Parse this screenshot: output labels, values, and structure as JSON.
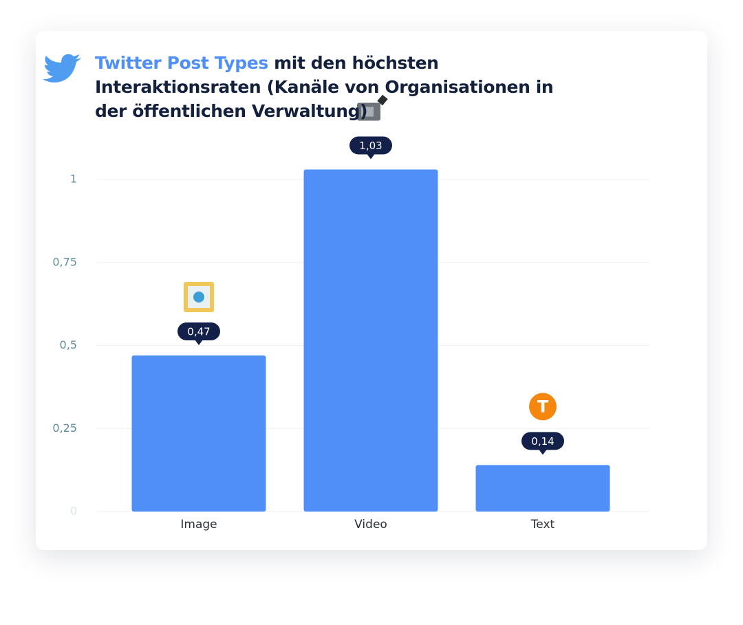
{
  "chart_data": {
    "type": "bar",
    "title_highlight": "Twitter Post Types",
    "title": "mit den höchsten Interaktionsraten (Kanäle von Organisationen in der öffentlichen Verwaltung)",
    "categories": [
      "Image",
      "Video",
      "Text"
    ],
    "values": [
      0.47,
      1.03,
      0.14
    ],
    "value_labels": [
      "0,47",
      "1,03",
      "0,14"
    ],
    "color": "#4f8ff7",
    "ylim": [
      0,
      1.1
    ],
    "yticks": [
      0,
      {
        "value": 0.25,
        "label": "0,25"
      },
      {
        "value": 0.5,
        "label": "0,5"
      },
      {
        "value": 0.75,
        "label": "0,75"
      },
      1
    ],
    "grid": true
  }
}
